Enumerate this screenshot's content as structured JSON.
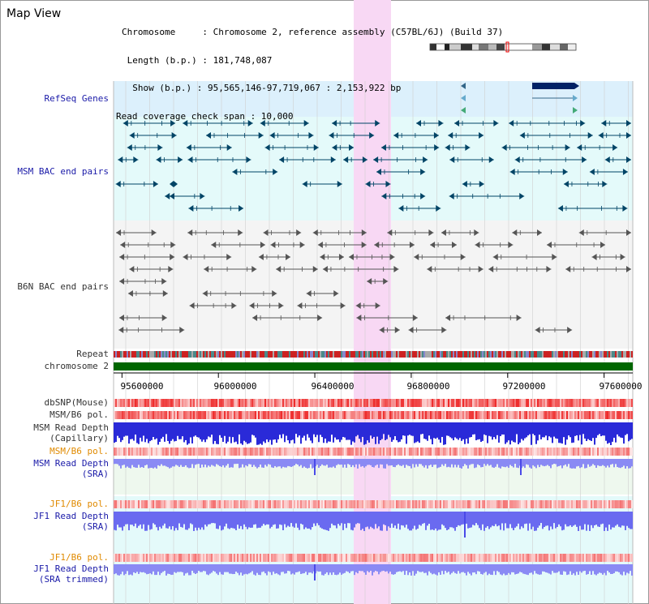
{
  "page": {
    "title": "Map View"
  },
  "info": {
    "chromosome": "Chromosome     : Chromosome 2, reference assembly (C57BL/6J) (Build 37)",
    "length": " Length (b.p.) : 181,748,087",
    "show": "  Show (b.p.) : 95,565,146-97,719,067 : 2,153,922 bp",
    "coverage": "Read coverage check span : 10,000"
  },
  "tracks": {
    "refseq": "RefSeq Genes",
    "msm_bac": "MSM BAC end pairs",
    "b6n_bac": "B6N BAC end pairs",
    "repeat": "Repeat",
    "chromosome": "chromosome 2",
    "dbsnp": "dbSNP(Mouse)",
    "msm_b6_pol_1": "MSM/B6 pol.",
    "msm_depth_cap_1": "MSM Read Depth",
    "msm_depth_cap_2": "(Capillary)",
    "msm_b6_pol_2": "MSM/B6 pol.",
    "msm_depth_sra_1": "MSM Read Depth",
    "msm_depth_sra_2": "(SRA)",
    "jf1_b6_pol_1": "JF1/B6 pol.",
    "jf1_depth_1": "JF1 Read Depth",
    "jf1_depth_2": "(SRA)",
    "jf1_b6_pol_2": "JF1/B6 pol.",
    "jf1_trim_1": "JF1 Read Depth",
    "jf1_trim_2": "(SRA trimmed)"
  },
  "axis": {
    "ticks": [
      "95600000",
      "96000000",
      "96400000",
      "96800000",
      "97200000",
      "97600000"
    ],
    "tick_values": [
      95600000,
      96000000,
      96400000,
      96800000,
      97200000,
      97600000
    ],
    "range": [
      95565146,
      97719067
    ]
  },
  "colors": {
    "highlight": "#f8d8f4",
    "refseq_bg": "#dcf0fc",
    "msm_bg": "#e4fafa",
    "b6n_bg": "#f4f4f4",
    "chromosome": "#006600",
    "gene": "#004466",
    "b6n": "#555555",
    "depth": "#4a4ae8",
    "depth_light": "#8a8af4",
    "snp": "#f06060"
  }
}
